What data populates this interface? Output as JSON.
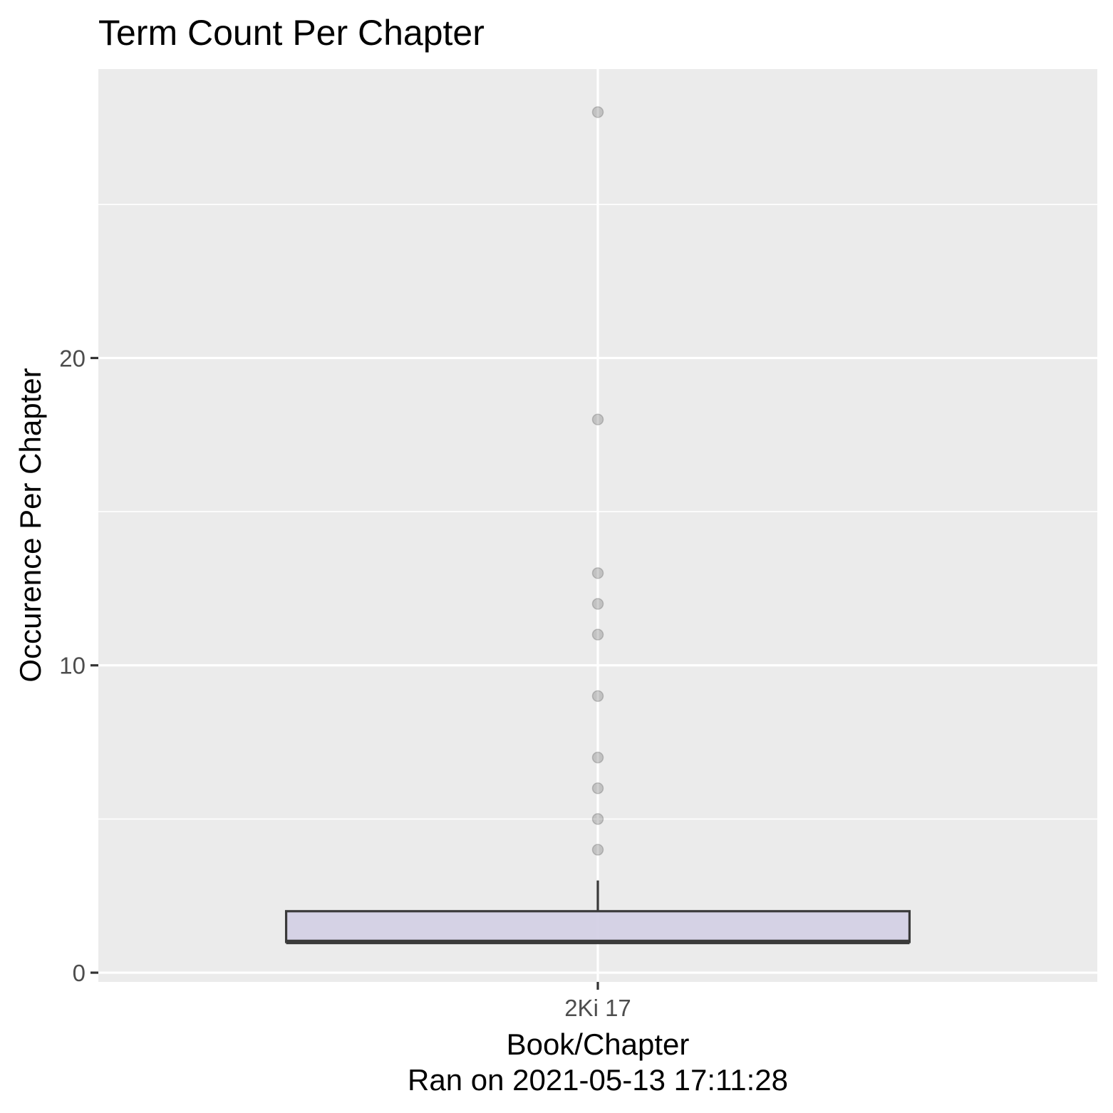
{
  "chart_data": {
    "type": "boxplot",
    "title": "Term Count Per Chapter",
    "xlabel": "Book/Chapter",
    "xlabel_sub": "Ran on 2021-05-13 17:11:28",
    "ylabel": "Occurence Per Chapter",
    "categories": [
      "2Ki 17"
    ],
    "ylim": [
      -0.3,
      29.4
    ],
    "y_ticks": [
      0,
      10,
      20
    ],
    "grid": true,
    "colors": {
      "panel_bg": "#ebebeb",
      "grid": "#ffffff",
      "box_fill": "#d2cfe4",
      "box_stroke": "#3a3a3a",
      "outlier": "#555555"
    },
    "boxes": [
      {
        "category": "2Ki 17",
        "min": 1,
        "q1": 1,
        "median": 1,
        "q3": 2,
        "max": 3,
        "outliers": [
          4,
          5,
          6,
          7,
          9,
          11,
          12,
          13,
          18,
          28
        ]
      }
    ]
  }
}
